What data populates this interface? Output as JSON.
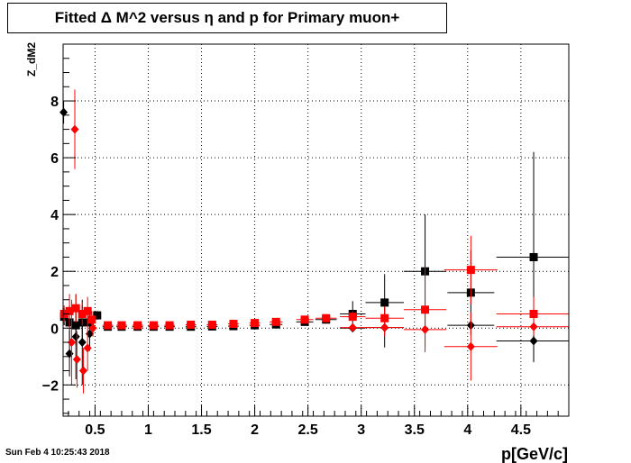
{
  "title": "Fitted Δ M^2 versus η and p for Primary muon+",
  "timestamp": "Sun Feb  4 10:25:43 2018",
  "chart_data": {
    "type": "scatter",
    "title": "Fitted Δ M^2 versus η and p for Primary muon+",
    "xlabel": "p[GeV/c]",
    "ylabel": "Z_dM2",
    "xlim": [
      0.2,
      4.95
    ],
    "ylim": [
      -3.1,
      10.0
    ],
    "x_ticks": [
      0.5,
      1,
      1.5,
      2,
      2.5,
      3,
      3.5,
      4,
      4.5
    ],
    "x_tick_labels": [
      "0.5",
      "1",
      "1.5",
      "2",
      "2.5",
      "3",
      "3.5",
      "4",
      "4.5"
    ],
    "y_ticks": [
      -2,
      0,
      2,
      4,
      6,
      8
    ],
    "y_tick_labels": [
      "−2",
      "0",
      "2",
      "4",
      "6",
      "8"
    ],
    "grid": true,
    "series": [
      {
        "marker": "square",
        "color": "#000000",
        "points": [
          {
            "x": 0.21,
            "y": 0.4,
            "xerr": 0.01,
            "yerr": 0.3
          },
          {
            "x": 0.26,
            "y": 0.2,
            "xerr": 0.01,
            "yerr": 0.6
          },
          {
            "x": 0.32,
            "y": 0.1,
            "xerr": 0.01,
            "yerr": 0.7
          },
          {
            "x": 0.38,
            "y": 0.2,
            "xerr": 0.01,
            "yerr": 0.6
          },
          {
            "x": 0.45,
            "y": 0.2,
            "xerr": 0.01,
            "yerr": 0.5
          },
          {
            "x": 0.52,
            "y": 0.45,
            "xerr": 0.02,
            "yerr": 0.15
          },
          {
            "x": 0.62,
            "y": 0.05,
            "xerr": 0.05,
            "yerr": 0.05
          },
          {
            "x": 0.75,
            "y": 0.05,
            "xerr": 0.05,
            "yerr": 0.05
          },
          {
            "x": 0.9,
            "y": 0.05,
            "xerr": 0.05,
            "yerr": 0.05
          },
          {
            "x": 1.05,
            "y": 0.05,
            "xerr": 0.05,
            "yerr": 0.05
          },
          {
            "x": 1.2,
            "y": 0.05,
            "xerr": 0.05,
            "yerr": 0.05
          },
          {
            "x": 1.4,
            "y": 0.05,
            "xerr": 0.05,
            "yerr": 0.05
          },
          {
            "x": 1.6,
            "y": 0.06,
            "xerr": 0.05,
            "yerr": 0.05
          },
          {
            "x": 1.8,
            "y": 0.07,
            "xerr": 0.05,
            "yerr": 0.05
          },
          {
            "x": 2.0,
            "y": 0.1,
            "xerr": 0.05,
            "yerr": 0.06
          },
          {
            "x": 2.2,
            "y": 0.13,
            "xerr": 0.06,
            "yerr": 0.07
          },
          {
            "x": 2.47,
            "y": 0.22,
            "xerr": 0.08,
            "yerr": 0.1
          },
          {
            "x": 2.67,
            "y": 0.3,
            "xerr": 0.1,
            "yerr": 0.12
          },
          {
            "x": 2.92,
            "y": 0.5,
            "xerr": 0.12,
            "yerr": 0.45
          },
          {
            "x": 3.22,
            "y": 0.9,
            "xerr": 0.18,
            "yerr": 1.0
          },
          {
            "x": 3.6,
            "y": 2.0,
            "xerr": 0.2,
            "yerr": 2.0
          },
          {
            "x": 4.03,
            "y": 1.25,
            "xerr": 0.22,
            "yerr": 1.5
          },
          {
            "x": 4.62,
            "y": 2.5,
            "xerr": 0.35,
            "yerr": 3.7
          }
        ]
      },
      {
        "marker": "diamond",
        "color": "#000000",
        "points": [
          {
            "x": 0.205,
            "y": 7.6,
            "xerr": 0.01,
            "yerr": 0.4
          },
          {
            "x": 0.26,
            "y": -0.9,
            "xerr": 0.01,
            "yerr": 0.8
          },
          {
            "x": 0.32,
            "y": -0.3,
            "xerr": 0.01,
            "yerr": 1.5
          },
          {
            "x": 0.38,
            "y": -0.5,
            "xerr": 0.01,
            "yerr": 1.5
          },
          {
            "x": 0.45,
            "y": -0.2,
            "xerr": 0.01,
            "yerr": 0.6
          },
          {
            "x": 2.92,
            "y": 0.0,
            "xerr": 0.12,
            "yerr": 0.05
          },
          {
            "x": 3.22,
            "y": 0.02,
            "xerr": 0.18,
            "yerr": 0.7
          },
          {
            "x": 4.03,
            "y": 0.1,
            "xerr": 0.22,
            "yerr": 0.15
          },
          {
            "x": 4.62,
            "y": -0.45,
            "xerr": 0.35,
            "yerr": 0.7
          }
        ]
      },
      {
        "marker": "square",
        "color": "#ff0000",
        "points": [
          {
            "x": 0.21,
            "y": 0.5,
            "xerr": 0.01,
            "yerr": 0.3
          },
          {
            "x": 0.26,
            "y": 0.6,
            "xerr": 0.01,
            "yerr": 0.6
          },
          {
            "x": 0.32,
            "y": 0.7,
            "xerr": 0.01,
            "yerr": 0.5
          },
          {
            "x": 0.38,
            "y": 0.5,
            "xerr": 0.01,
            "yerr": 0.4
          },
          {
            "x": 0.43,
            "y": 0.6,
            "xerr": 0.01,
            "yerr": 0.5
          },
          {
            "x": 0.47,
            "y": 0.3,
            "xerr": 0.01,
            "yerr": 0.3
          },
          {
            "x": 0.62,
            "y": 0.1,
            "xerr": 0.05,
            "yerr": 0.05
          },
          {
            "x": 0.75,
            "y": 0.1,
            "xerr": 0.05,
            "yerr": 0.05
          },
          {
            "x": 0.9,
            "y": 0.1,
            "xerr": 0.05,
            "yerr": 0.05
          },
          {
            "x": 1.05,
            "y": 0.1,
            "xerr": 0.05,
            "yerr": 0.05
          },
          {
            "x": 1.2,
            "y": 0.1,
            "xerr": 0.05,
            "yerr": 0.05
          },
          {
            "x": 1.4,
            "y": 0.12,
            "xerr": 0.05,
            "yerr": 0.05
          },
          {
            "x": 1.6,
            "y": 0.12,
            "xerr": 0.05,
            "yerr": 0.05
          },
          {
            "x": 1.8,
            "y": 0.15,
            "xerr": 0.05,
            "yerr": 0.06
          },
          {
            "x": 2.0,
            "y": 0.18,
            "xerr": 0.05,
            "yerr": 0.07
          },
          {
            "x": 2.2,
            "y": 0.22,
            "xerr": 0.06,
            "yerr": 0.08
          },
          {
            "x": 2.47,
            "y": 0.3,
            "xerr": 0.08,
            "yerr": 0.1
          },
          {
            "x": 2.67,
            "y": 0.35,
            "xerr": 0.1,
            "yerr": 0.12
          },
          {
            "x": 2.92,
            "y": 0.4,
            "xerr": 0.12,
            "yerr": 0.2
          },
          {
            "x": 3.22,
            "y": 0.35,
            "xerr": 0.18,
            "yerr": 0.4
          },
          {
            "x": 3.6,
            "y": 0.65,
            "xerr": 0.2,
            "yerr": 1.5
          },
          {
            "x": 4.03,
            "y": 2.05,
            "xerr": 0.25,
            "yerr": 1.2
          },
          {
            "x": 4.62,
            "y": 0.5,
            "xerr": 0.35,
            "yerr": 0.6
          }
        ]
      },
      {
        "marker": "diamond",
        "color": "#ff0000",
        "points": [
          {
            "x": 0.31,
            "y": 7.0,
            "xerr": 0.01,
            "yerr": 1.4
          },
          {
            "x": 0.28,
            "y": -0.5,
            "xerr": 0.01,
            "yerr": 1.5
          },
          {
            "x": 0.33,
            "y": -1.1,
            "xerr": 0.01,
            "yerr": 1.0
          },
          {
            "x": 0.39,
            "y": -1.5,
            "xerr": 0.01,
            "yerr": 0.8
          },
          {
            "x": 0.43,
            "y": -0.7,
            "xerr": 0.01,
            "yerr": 0.8
          },
          {
            "x": 0.48,
            "y": 0.0,
            "xerr": 0.02,
            "yerr": 0.3
          },
          {
            "x": 2.92,
            "y": 0.02,
            "xerr": 0.12,
            "yerr": 0.1
          },
          {
            "x": 3.22,
            "y": 0.02,
            "xerr": 0.18,
            "yerr": 0.3
          },
          {
            "x": 3.6,
            "y": -0.05,
            "xerr": 0.2,
            "yerr": 0.6
          },
          {
            "x": 4.03,
            "y": -0.65,
            "xerr": 0.25,
            "yerr": 1.2
          },
          {
            "x": 4.62,
            "y": 0.05,
            "xerr": 0.35,
            "yerr": 0.3
          }
        ]
      }
    ]
  }
}
